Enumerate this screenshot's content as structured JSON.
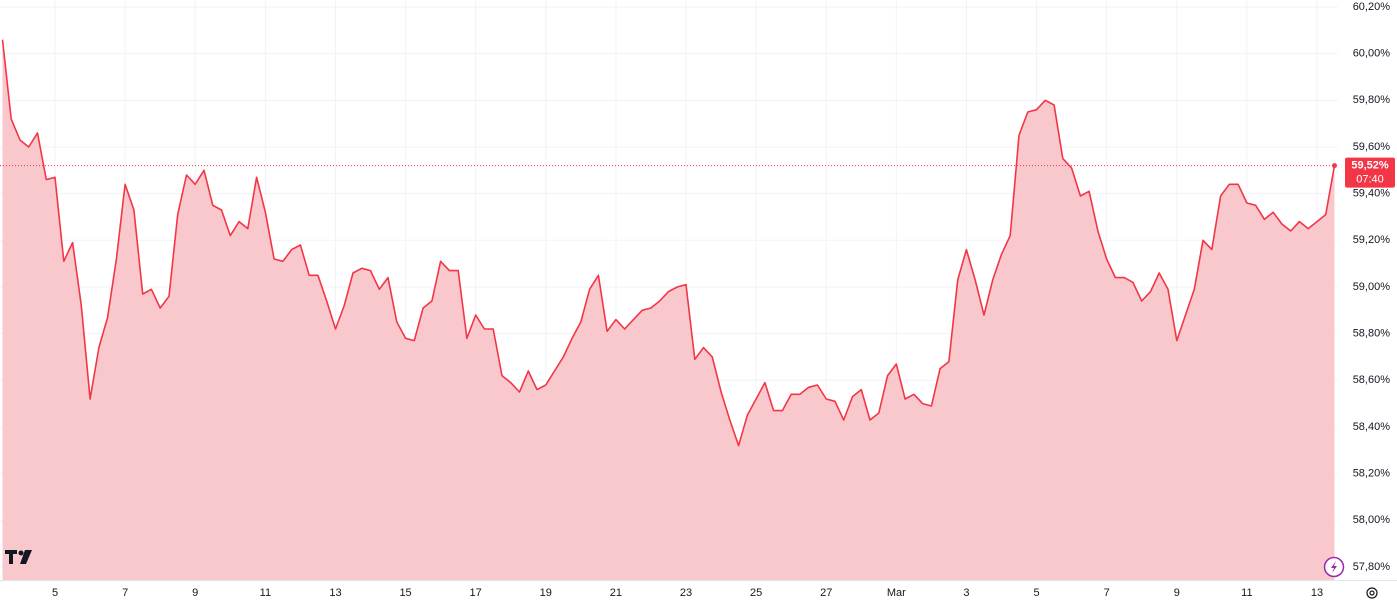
{
  "chart_data": {
    "type": "area",
    "color": "#f23645",
    "fill": "#f9c8cc",
    "grid": true,
    "x": [
      3.5,
      3.75,
      4,
      4.25,
      4.5,
      4.75,
      5,
      5.25,
      5.5,
      5.75,
      6,
      6.25,
      6.5,
      6.75,
      7,
      7.25,
      7.5,
      7.75,
      8,
      8.25,
      8.5,
      8.75,
      9,
      9.25,
      9.5,
      9.75,
      10,
      10.25,
      10.5,
      10.75,
      11,
      11.25,
      11.5,
      11.75,
      12,
      12.25,
      12.5,
      12.75,
      13,
      13.25,
      13.5,
      13.75,
      14,
      14.25,
      14.5,
      14.75,
      15,
      15.25,
      15.5,
      15.75,
      16,
      16.25,
      16.5,
      16.75,
      17,
      17.25,
      17.5,
      17.75,
      18,
      18.25,
      18.5,
      18.75,
      19,
      19.25,
      19.5,
      19.75,
      20,
      20.25,
      20.5,
      20.75,
      21,
      21.25,
      21.5,
      21.75,
      22,
      22.25,
      22.5,
      22.75,
      23,
      23.25,
      23.5,
      23.75,
      24,
      24.25,
      24.5,
      24.75,
      25,
      25.25,
      25.5,
      25.75,
      26,
      26.25,
      26.5,
      26.75,
      27,
      27.25,
      27.5,
      27.75,
      28,
      28.25,
      28.5,
      28.75,
      29,
      29.25,
      29.5,
      29.75,
      30,
      30.25,
      30.5,
      30.75,
      31,
      31.25,
      31.5,
      31.75,
      32,
      32.25,
      32.5,
      32.75,
      33,
      33.25,
      33.5,
      33.75,
      34,
      34.25,
      34.5,
      34.75,
      35,
      35.25,
      35.5,
      35.75,
      36,
      36.25,
      36.5,
      36.75,
      37,
      37.25,
      37.5,
      37.75,
      38,
      38.25,
      38.5,
      38.75,
      39,
      39.25,
      39.5,
      39.75,
      40,
      40.25,
      40.5,
      40.75,
      41,
      41.25,
      41.5
    ],
    "values": [
      60.06,
      59.72,
      59.63,
      59.6,
      59.66,
      59.46,
      59.47,
      59.11,
      59.19,
      58.92,
      58.52,
      58.74,
      58.87,
      59.12,
      59.44,
      59.33,
      58.97,
      58.99,
      58.91,
      58.96,
      59.31,
      59.48,
      59.44,
      59.5,
      59.35,
      59.33,
      59.22,
      59.28,
      59.25,
      59.47,
      59.32,
      59.12,
      59.11,
      59.16,
      59.18,
      59.05,
      59.05,
      58.94,
      58.82,
      58.92,
      59.06,
      59.08,
      59.07,
      58.99,
      59.04,
      58.85,
      58.78,
      58.77,
      58.91,
      58.94,
      59.11,
      59.07,
      59.07,
      58.78,
      58.88,
      58.82,
      58.82,
      58.62,
      58.59,
      58.55,
      58.64,
      58.56,
      58.58,
      58.64,
      58.7,
      58.78,
      58.85,
      58.99,
      59.05,
      58.81,
      58.86,
      58.82,
      58.86,
      58.9,
      58.91,
      58.94,
      58.98,
      59.0,
      59.01,
      58.69,
      58.74,
      58.7,
      58.55,
      58.43,
      58.32,
      58.45,
      58.52,
      58.59,
      58.47,
      58.47,
      58.54,
      58.54,
      58.57,
      58.58,
      58.52,
      58.51,
      58.43,
      58.53,
      58.56,
      58.43,
      58.46,
      58.62,
      58.67,
      58.52,
      58.54,
      58.5,
      58.49,
      58.65,
      58.68,
      59.03,
      59.16,
      59.03,
      58.88,
      59.03,
      59.14,
      59.22,
      59.65,
      59.75,
      59.76,
      59.8,
      59.78,
      59.55,
      59.51,
      59.39,
      59.41,
      59.24,
      59.12,
      59.04,
      59.04,
      59.02,
      58.94,
      58.98,
      59.06,
      58.99,
      58.77,
      58.88,
      58.99,
      59.2,
      59.16,
      59.39,
      59.44,
      59.44,
      59.36,
      59.35,
      59.29,
      59.32,
      59.27,
      59.24,
      59.28,
      59.25,
      59.28,
      59.31,
      59.52
    ],
    "xlim": [
      3.43,
      41.6
    ],
    "ylim": [
      57.744,
      60.23
    ],
    "xticks": [
      5,
      7,
      9,
      11,
      13,
      15,
      17,
      19,
      21,
      23,
      25,
      27,
      {
        "value": 29,
        "label": "Mar"
      },
      {
        "value": 31,
        "label": "3"
      },
      {
        "value": 33,
        "label": "5"
      },
      {
        "value": 35,
        "label": "7"
      },
      {
        "value": 37,
        "label": "9"
      },
      {
        "value": 39,
        "label": "11"
      },
      {
        "value": 41,
        "label": "13"
      }
    ],
    "yticks": [
      {
        "value": 57.8,
        "label": "57,80%"
      },
      {
        "value": 58.0,
        "label": "58,00%"
      },
      {
        "value": 58.2,
        "label": "58,20%"
      },
      {
        "value": 58.4,
        "label": "58,40%"
      },
      {
        "value": 58.6,
        "label": "58,60%"
      },
      {
        "value": 58.8,
        "label": "58,80%"
      },
      {
        "value": 59.0,
        "label": "59,00%"
      },
      {
        "value": 59.2,
        "label": "59,20%"
      },
      {
        "value": 59.4,
        "label": "59,40%"
      },
      {
        "value": 59.6,
        "label": "59,60%"
      },
      {
        "value": 59.8,
        "label": "59,80%"
      },
      {
        "value": 60.0,
        "label": "60,00%"
      },
      {
        "value": 60.2,
        "label": "60,20%"
      }
    ],
    "last_price": {
      "value": 59.52,
      "label": "59,52%"
    },
    "last_time": "07:40"
  }
}
